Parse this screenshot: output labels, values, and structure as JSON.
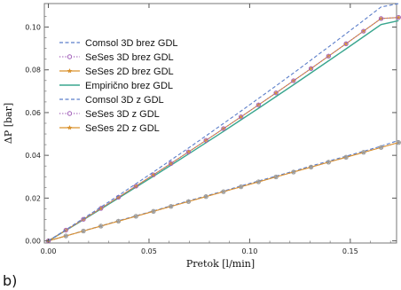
{
  "panel_label": "b)",
  "colors": {
    "comsol": "#5b7ec9",
    "seses3d": "#a05cb8",
    "seses2d": "#d9922e",
    "empiricno": "#3aa68f",
    "gdl_points": "#9a9a9a",
    "frame": "#777777"
  },
  "chart_data": {
    "type": "line",
    "xlabel": "Pretok [l/min]",
    "ylabel": "ΔP [bar]",
    "xlim": [
      -0.002,
      0.173
    ],
    "ylim": [
      -0.001,
      0.111
    ],
    "x_ticks": [
      0.0,
      0.05,
      0.1,
      0.15
    ],
    "x_tick_labels": [
      "0.00",
      "0.05",
      "0.10",
      "0.15"
    ],
    "y_ticks": [
      0.0,
      0.02,
      0.04,
      0.06,
      0.08,
      0.1
    ],
    "y_tick_labels": [
      "0.00",
      "0.02",
      "0.04",
      "0.06",
      "0.08",
      "0.10"
    ],
    "grid": false,
    "legend_position": "top-left",
    "legend": [
      "Comsol 3D brez GDL",
      "SeSes 3D brez GDL",
      "SeSes 2D brez GDL",
      "Empirično brez GDL",
      "Comsol 3D z GDL",
      "SeSes 3D z GDL",
      "SeSes 2D z GDL"
    ],
    "x": [
      0.0,
      0.0087,
      0.0174,
      0.0261,
      0.0348,
      0.0435,
      0.0522,
      0.0609,
      0.0696,
      0.0783,
      0.087,
      0.0957,
      0.1044,
      0.1131,
      0.1218,
      0.1305,
      0.1392,
      0.1479,
      0.1566,
      0.1653,
      0.174
    ],
    "series": [
      {
        "name": "Comsol 3D brez GDL",
        "style": "dashed",
        "color_key": "comsol",
        "values": [
          0.0,
          0.0052,
          0.0105,
          0.0158,
          0.0212,
          0.0267,
          0.0322,
          0.0378,
          0.0434,
          0.0491,
          0.0549,
          0.0607,
          0.0666,
          0.0725,
          0.0785,
          0.0846,
          0.0907,
          0.0969,
          0.1031,
          0.1094,
          0.111
        ]
      },
      {
        "name": "SeSes 3D brez GDL",
        "style": "dotted-circle",
        "color_key": "seses3d",
        "values": [
          0.0,
          0.005,
          0.0101,
          0.0152,
          0.0204,
          0.0256,
          0.0309,
          0.0362,
          0.0416,
          0.047,
          0.0525,
          0.058,
          0.0636,
          0.0692,
          0.0749,
          0.0806,
          0.0864,
          0.0922,
          0.0981,
          0.104,
          0.1045
        ]
      },
      {
        "name": "SeSes 2D brez GDL",
        "style": "solid-star",
        "color_key": "seses2d",
        "values": [
          0.0,
          0.005,
          0.0101,
          0.0152,
          0.0204,
          0.0256,
          0.0309,
          0.0362,
          0.0416,
          0.047,
          0.0525,
          0.058,
          0.0636,
          0.0692,
          0.0749,
          0.0806,
          0.0864,
          0.0922,
          0.0981,
          0.104,
          0.1045
        ]
      },
      {
        "name": "Empirično brez GDL",
        "style": "solid",
        "color_key": "empiricno",
        "values": [
          0.0,
          0.0049,
          0.0099,
          0.0149,
          0.02,
          0.0251,
          0.0302,
          0.0354,
          0.0406,
          0.0459,
          0.0512,
          0.0566,
          0.062,
          0.0675,
          0.073,
          0.0786,
          0.0842,
          0.0898,
          0.0955,
          0.1012,
          0.103
        ]
      },
      {
        "name": "Comsol 3D z GDL",
        "style": "dashed",
        "color_key": "comsol",
        "values": [
          0.0,
          0.0023,
          0.0047,
          0.007,
          0.0094,
          0.0117,
          0.014,
          0.0164,
          0.0187,
          0.021,
          0.0233,
          0.0257,
          0.028,
          0.0303,
          0.0326,
          0.035,
          0.0373,
          0.0396,
          0.0419,
          0.0443,
          0.047
        ]
      },
      {
        "name": "SeSes 3D z GDL",
        "style": "dotted-circle",
        "color_key": "seses3d",
        "values": [
          0.0,
          0.0023,
          0.0046,
          0.0069,
          0.0092,
          0.0115,
          0.0138,
          0.0161,
          0.0184,
          0.0207,
          0.023,
          0.0253,
          0.0276,
          0.0299,
          0.0322,
          0.0345,
          0.0368,
          0.0391,
          0.0414,
          0.0437,
          0.046
        ]
      },
      {
        "name": "SeSes 2D z GDL",
        "style": "solid-star",
        "color_key": "seses2d",
        "values": [
          0.0,
          0.0023,
          0.0046,
          0.0069,
          0.0092,
          0.0115,
          0.0138,
          0.0161,
          0.0184,
          0.0207,
          0.023,
          0.0253,
          0.0276,
          0.0299,
          0.0322,
          0.0345,
          0.0368,
          0.0391,
          0.0414,
          0.0437,
          0.046
        ]
      }
    ]
  }
}
